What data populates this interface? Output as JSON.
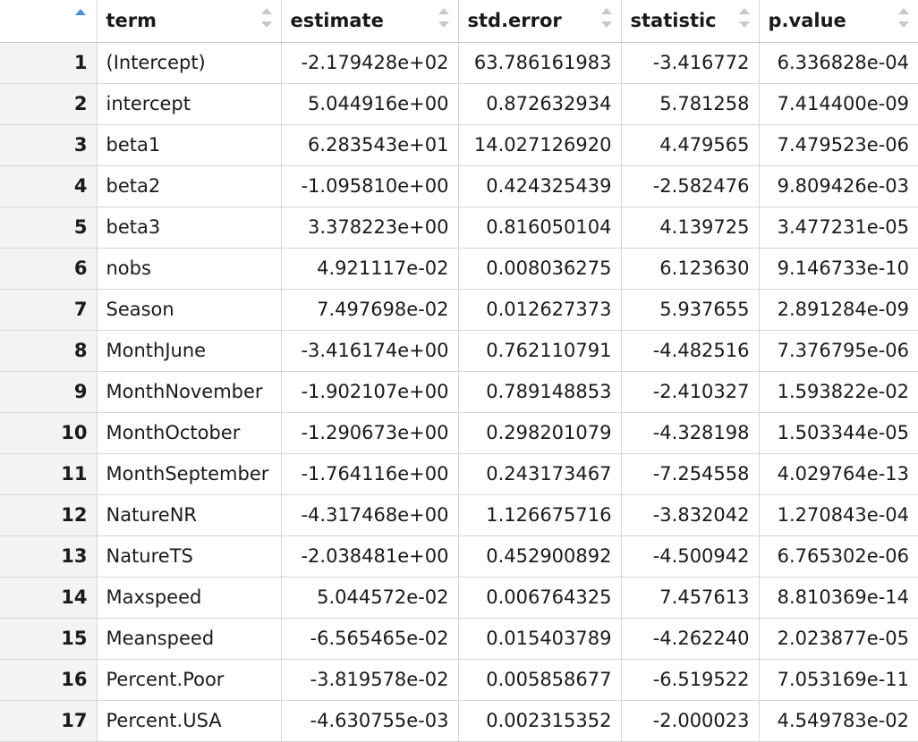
{
  "table": {
    "columns": [
      {
        "key": "term",
        "label": "term"
      },
      {
        "key": "estimate",
        "label": "estimate"
      },
      {
        "key": "std_error",
        "label": "std.error"
      },
      {
        "key": "statistic",
        "label": "statistic"
      },
      {
        "key": "p_value",
        "label": "p.value"
      }
    ],
    "colors": {
      "sort_active": "#4a90d9",
      "sort_inactive": "#c8c8c8",
      "rownum_bg": "#f1f3f4",
      "gridline": "#d6d6d6"
    },
    "rows": [
      {
        "n": "1",
        "term": "(Intercept)",
        "estimate": "-2.179428e+02",
        "std_error": "63.786161983",
        "statistic": "-3.416772",
        "p_value": "6.336828e-04"
      },
      {
        "n": "2",
        "term": "intercept",
        "estimate": "5.044916e+00",
        "std_error": "0.872632934",
        "statistic": "5.781258",
        "p_value": "7.414400e-09"
      },
      {
        "n": "3",
        "term": "beta1",
        "estimate": "6.283543e+01",
        "std_error": "14.027126920",
        "statistic": "4.479565",
        "p_value": "7.479523e-06"
      },
      {
        "n": "4",
        "term": "beta2",
        "estimate": "-1.095810e+00",
        "std_error": "0.424325439",
        "statistic": "-2.582476",
        "p_value": "9.809426e-03"
      },
      {
        "n": "5",
        "term": "beta3",
        "estimate": "3.378223e+00",
        "std_error": "0.816050104",
        "statistic": "4.139725",
        "p_value": "3.477231e-05"
      },
      {
        "n": "6",
        "term": "nobs",
        "estimate": "4.921117e-02",
        "std_error": "0.008036275",
        "statistic": "6.123630",
        "p_value": "9.146733e-10"
      },
      {
        "n": "7",
        "term": "Season",
        "estimate": "7.497698e-02",
        "std_error": "0.012627373",
        "statistic": "5.937655",
        "p_value": "2.891284e-09"
      },
      {
        "n": "8",
        "term": "MonthJune",
        "estimate": "-3.416174e+00",
        "std_error": "0.762110791",
        "statistic": "-4.482516",
        "p_value": "7.376795e-06"
      },
      {
        "n": "9",
        "term": "MonthNovember",
        "estimate": "-1.902107e+00",
        "std_error": "0.789148853",
        "statistic": "-2.410327",
        "p_value": "1.593822e-02"
      },
      {
        "n": "10",
        "term": "MonthOctober",
        "estimate": "-1.290673e+00",
        "std_error": "0.298201079",
        "statistic": "-4.328198",
        "p_value": "1.503344e-05"
      },
      {
        "n": "11",
        "term": "MonthSeptember",
        "estimate": "-1.764116e+00",
        "std_error": "0.243173467",
        "statistic": "-7.254558",
        "p_value": "4.029764e-13"
      },
      {
        "n": "12",
        "term": "NatureNR",
        "estimate": "-4.317468e+00",
        "std_error": "1.126675716",
        "statistic": "-3.832042",
        "p_value": "1.270843e-04"
      },
      {
        "n": "13",
        "term": "NatureTS",
        "estimate": "-2.038481e+00",
        "std_error": "0.452900892",
        "statistic": "-4.500942",
        "p_value": "6.765302e-06"
      },
      {
        "n": "14",
        "term": "Maxspeed",
        "estimate": "5.044572e-02",
        "std_error": "0.006764325",
        "statistic": "7.457613",
        "p_value": "8.810369e-14"
      },
      {
        "n": "15",
        "term": "Meanspeed",
        "estimate": "-6.565465e-02",
        "std_error": "0.015403789",
        "statistic": "-4.262240",
        "p_value": "2.023877e-05"
      },
      {
        "n": "16",
        "term": "Percent.Poor",
        "estimate": "-3.819578e-02",
        "std_error": "0.005858677",
        "statistic": "-6.519522",
        "p_value": "7.053169e-11"
      },
      {
        "n": "17",
        "term": "Percent.USA",
        "estimate": "-4.630755e-03",
        "std_error": "0.002315352",
        "statistic": "-2.000023",
        "p_value": "4.549783e-02"
      }
    ]
  }
}
